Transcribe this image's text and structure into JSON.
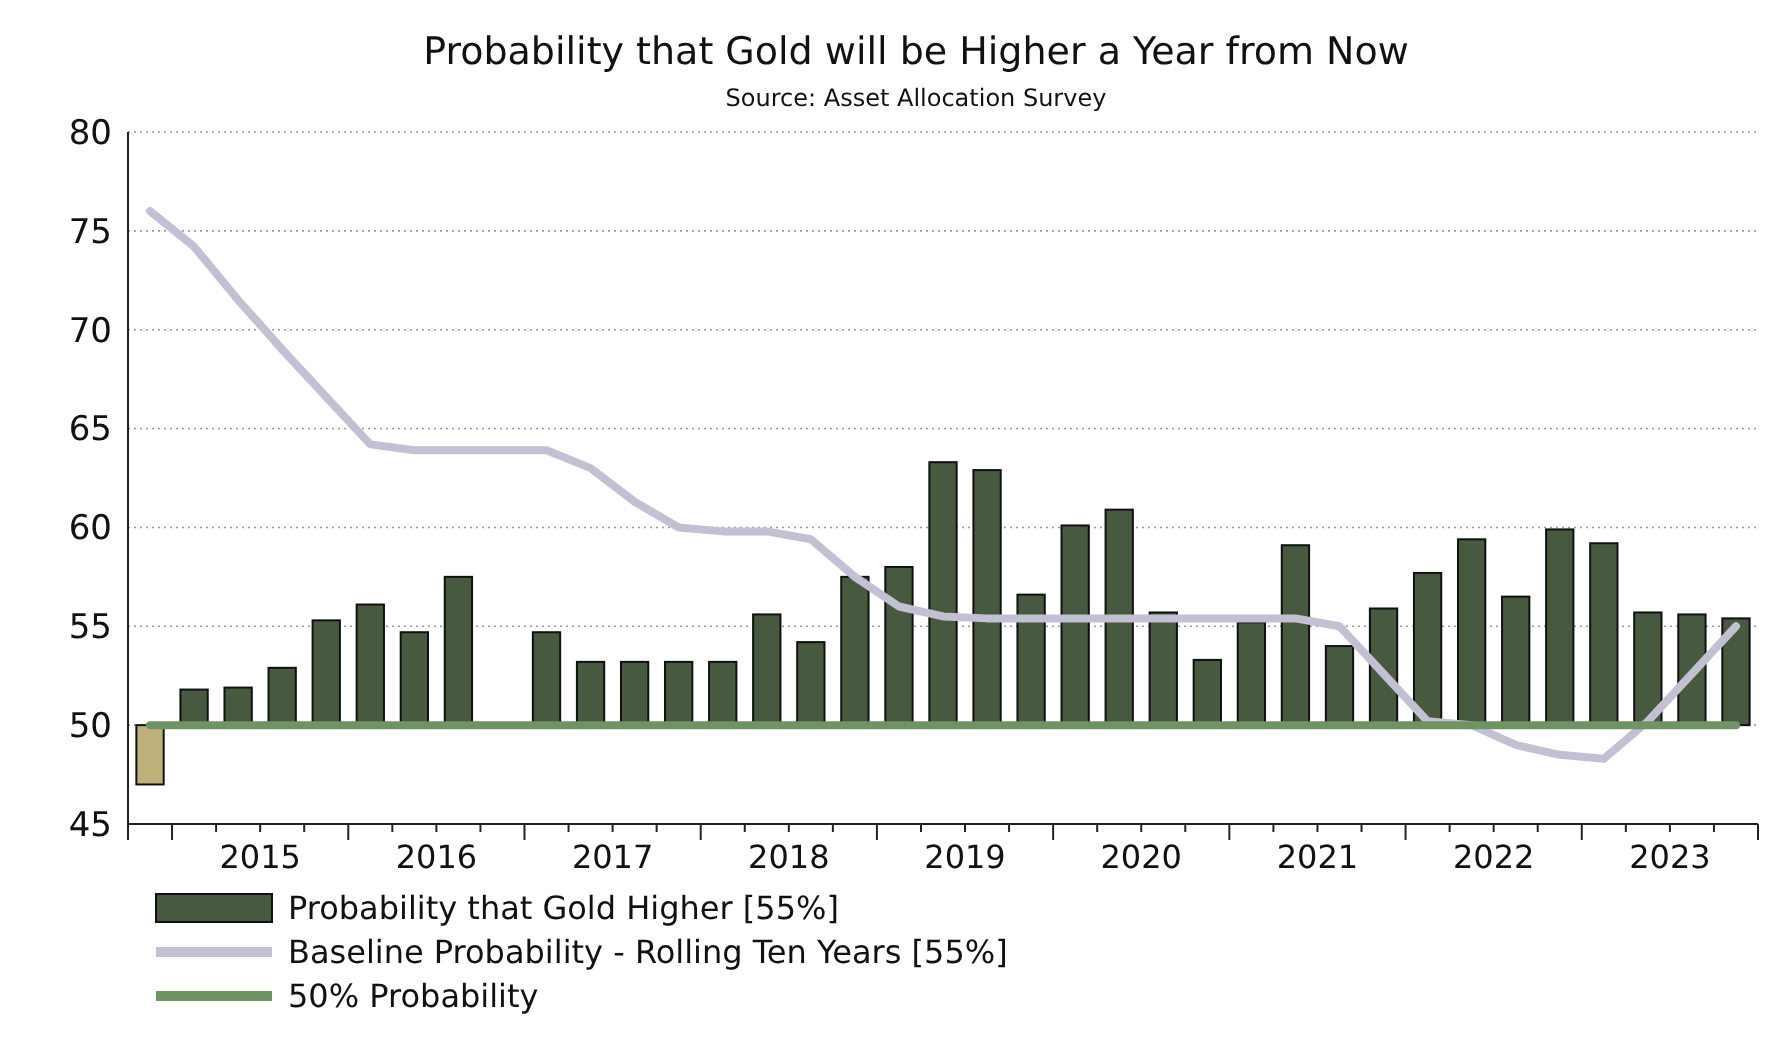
{
  "chart_data": {
    "type": "bar",
    "title": "Probability that Gold will be Higher a Year from Now",
    "subtitle": "Source: Asset Allocation Survey",
    "x": [
      2014.875,
      2015.125,
      2015.375,
      2015.625,
      2015.875,
      2016.125,
      2016.375,
      2016.625,
      2016.875,
      2017.125,
      2017.375,
      2017.625,
      2017.875,
      2018.125,
      2018.375,
      2018.625,
      2018.875,
      2019.125,
      2019.375,
      2019.625,
      2019.875,
      2020.125,
      2020.375,
      2020.625,
      2020.875,
      2021.125,
      2021.375,
      2021.625,
      2021.875,
      2022.125,
      2022.375,
      2022.625,
      2022.875,
      2023.125,
      2023.375,
      2023.625,
      2023.875
    ],
    "xlim": [
      2014.75,
      2024.0
    ],
    "xticks": [
      {
        "value": 2014.75,
        "label": null
      },
      {
        "value": 2015,
        "label": null
      },
      {
        "value": 2015.25,
        "label": null
      },
      {
        "value": 2015.5,
        "label": "2015"
      },
      {
        "value": 2015.75,
        "label": null
      },
      {
        "value": 2016,
        "label": null
      },
      {
        "value": 2016.25,
        "label": null
      },
      {
        "value": 2016.5,
        "label": "2016"
      },
      {
        "value": 2016.75,
        "label": null
      },
      {
        "value": 2017,
        "label": null
      },
      {
        "value": 2017.25,
        "label": null
      },
      {
        "value": 2017.5,
        "label": "2017"
      },
      {
        "value": 2017.75,
        "label": null
      },
      {
        "value": 2018,
        "label": null
      },
      {
        "value": 2018.25,
        "label": null
      },
      {
        "value": 2018.5,
        "label": "2018"
      },
      {
        "value": 2018.75,
        "label": null
      },
      {
        "value": 2019,
        "label": null
      },
      {
        "value": 2019.25,
        "label": null
      },
      {
        "value": 2019.5,
        "label": "2019"
      },
      {
        "value": 2019.75,
        "label": null
      },
      {
        "value": 2020,
        "label": null
      },
      {
        "value": 2020.25,
        "label": null
      },
      {
        "value": 2020.5,
        "label": "2020"
      },
      {
        "value": 2020.75,
        "label": null
      },
      {
        "value": 2021,
        "label": null
      },
      {
        "value": 2021.25,
        "label": null
      },
      {
        "value": 2021.5,
        "label": "2021"
      },
      {
        "value": 2021.75,
        "label": null
      },
      {
        "value": 2022,
        "label": null
      },
      {
        "value": 2022.25,
        "label": null
      },
      {
        "value": 2022.5,
        "label": "2022"
      },
      {
        "value": 2022.75,
        "label": null
      },
      {
        "value": 2023,
        "label": null
      },
      {
        "value": 2023.25,
        "label": null
      },
      {
        "value": 2023.5,
        "label": "2023"
      },
      {
        "value": 2023.75,
        "label": null
      },
      {
        "value": 2024,
        "label": null
      }
    ],
    "ylim": [
      45,
      80
    ],
    "yticks": [
      45,
      50,
      55,
      60,
      65,
      70,
      75,
      80
    ],
    "grid": "y",
    "legend": "bottom",
    "series": [
      {
        "name": "Probability that Gold Higher [55%]",
        "color": "#475a3f",
        "colors": [
          "#bfb07a",
          "#475a3f",
          "#475a3f",
          "#475a3f",
          "#475a3f",
          "#475a3f",
          "#475a3f",
          "#475a3f",
          null,
          "#475a3f",
          "#475a3f",
          "#475a3f",
          "#475a3f",
          "#475a3f",
          "#475a3f",
          "#475a3f",
          "#475a3f",
          "#475a3f",
          "#475a3f",
          "#475a3f",
          "#475a3f",
          "#475a3f",
          "#475a3f",
          "#475a3f",
          "#475a3f",
          "#475a3f",
          "#475a3f",
          "#475a3f",
          "#475a3f",
          "#475a3f",
          "#475a3f",
          "#475a3f",
          "#475a3f",
          "#475a3f",
          "#475a3f",
          "#475a3f",
          "#475a3f"
        ],
        "base": [
          50,
          50,
          50,
          50,
          50,
          50,
          50,
          50,
          null,
          50,
          50,
          50,
          50,
          50,
          50,
          50,
          50,
          50,
          50,
          50,
          50,
          50,
          50,
          50,
          50,
          50,
          50,
          50,
          50,
          50,
          50,
          50,
          50,
          50,
          50,
          50,
          50
        ],
        "values": [
          -3,
          1.8,
          1.9,
          2.9,
          5.3,
          6.1,
          4.7,
          7.5,
          null,
          4.7,
          3.2,
          3.2,
          3.2,
          3.2,
          5.6,
          4.2,
          7.5,
          8,
          13.3,
          12.9,
          6.6,
          10.1,
          10.9,
          5.7,
          3.3,
          5.2,
          9.1,
          4,
          5.9,
          7.7,
          9.4,
          6.5,
          9.9,
          9.2,
          5.7,
          5.6,
          5.4
        ]
      },
      {
        "type": "line",
        "name": "Baseline Probability - Rolling Ten Years [55%]",
        "color": "#c3c0d4",
        "values": [
          76,
          74.2,
          71.5,
          69,
          66.6,
          64.2,
          63.9,
          63.9,
          63.9,
          63.9,
          63,
          61.3,
          60,
          59.8,
          59.8,
          59.4,
          57.5,
          56,
          55.5,
          55.4,
          55.4,
          55.4,
          55.4,
          55.4,
          55.4,
          55.4,
          55.4,
          55,
          52.6,
          50.2,
          50,
          49,
          48.5,
          48.3,
          50.2,
          52.6,
          55
        ]
      },
      {
        "type": "line",
        "name": "50% Probability",
        "color": "#6e9463",
        "values": [
          50,
          50,
          50,
          50,
          50,
          50,
          50,
          50,
          50,
          50,
          50,
          50,
          50,
          50,
          50,
          50,
          50,
          50,
          50,
          50,
          50,
          50,
          50,
          50,
          50,
          50,
          50,
          50,
          50,
          50,
          50,
          50,
          50,
          50,
          50,
          50,
          50
        ]
      }
    ]
  }
}
